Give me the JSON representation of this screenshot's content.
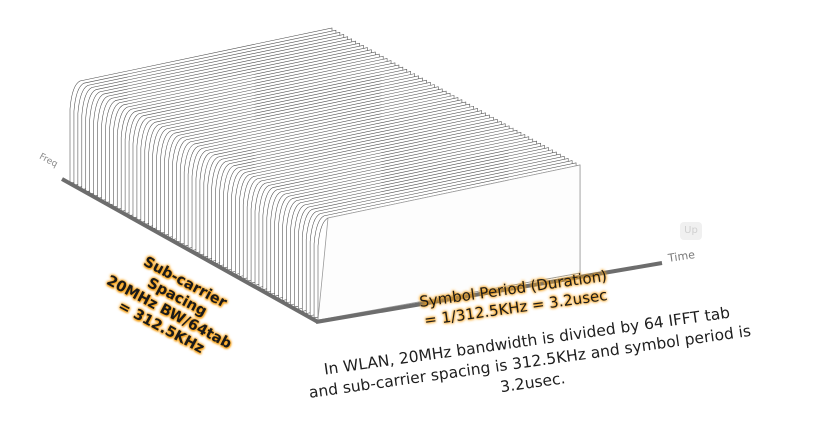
{
  "axes": {
    "freq_label": "Freq",
    "time_label": "Time"
  },
  "spacing": {
    "line1": "Sub-carrier Spacing",
    "line2": "20MHz BW/64tab",
    "line3": "= 312.5KHz"
  },
  "period": {
    "line1": "Symbol Period (Duration)",
    "line2": "= 1/312.5KHz = 3.2usec"
  },
  "caption": {
    "line1": "In WLAN, 20MHz bandwidth is divided by 64 IFFT tab",
    "line2": "and sub-carrier spacing is 312.5KHz and symbol period is 3.2usec."
  },
  "colors": {
    "highlight": "#f6a21a",
    "axis": "#6d6d6d",
    "slab": "#ffffff",
    "edge": "#4a4a4a"
  },
  "diagram": {
    "subcarrier_count": 64
  }
}
